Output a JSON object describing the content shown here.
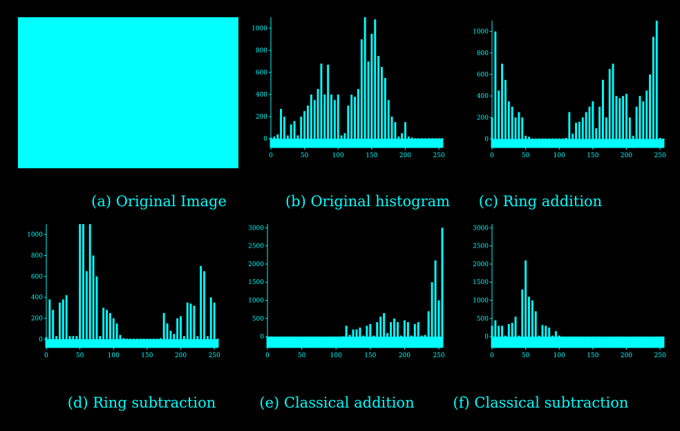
{
  "accent_color": "#00FFFF",
  "background_color": "#000000",
  "original_image": {
    "fill_color": "#00FFFF"
  },
  "captions": {
    "a": "(a) Original Image",
    "b": "(b) Original histogram",
    "c": "(c) Ring addition",
    "d": "(d) Ring subtraction",
    "e": "(e) Classical addition",
    "f": "(f) Classical subtraction"
  },
  "chart_data": [
    {
      "id": "b",
      "type": "bar",
      "title": "",
      "xlabel": "",
      "ylabel": "",
      "grid": false,
      "xlim": [
        0,
        255
      ],
      "ylim": [
        -80,
        1100
      ],
      "x_ticks": [
        0,
        50,
        100,
        150,
        200,
        250
      ],
      "y_ticks": [
        0,
        200,
        400,
        600,
        800,
        1000
      ],
      "y_tick_labels": [
        "0",
        "200",
        "400",
        "600",
        "800",
        "1000"
      ],
      "x": [
        0,
        5,
        10,
        15,
        20,
        25,
        30,
        35,
        40,
        45,
        50,
        55,
        60,
        65,
        70,
        75,
        80,
        85,
        90,
        95,
        100,
        105,
        110,
        115,
        120,
        125,
        130,
        135,
        140,
        145,
        150,
        155,
        160,
        165,
        170,
        175,
        180,
        185,
        190,
        195,
        200,
        205,
        210,
        215,
        220,
        225,
        230,
        235,
        240,
        245,
        250,
        255
      ],
      "values": [
        10,
        20,
        40,
        270,
        200,
        30,
        130,
        160,
        30,
        200,
        250,
        300,
        400,
        350,
        450,
        680,
        400,
        670,
        400,
        350,
        400,
        30,
        50,
        300,
        400,
        380,
        450,
        900,
        1100,
        700,
        950,
        1080,
        750,
        650,
        550,
        350,
        200,
        150,
        20,
        50,
        150,
        20,
        10,
        5,
        5,
        5,
        5,
        5,
        5,
        5,
        5,
        5
      ]
    },
    {
      "id": "c",
      "type": "bar",
      "title": "",
      "xlabel": "",
      "ylabel": "",
      "grid": false,
      "xlim": [
        0,
        255
      ],
      "ylim": [
        -80,
        1100
      ],
      "x_ticks": [
        0,
        50,
        100,
        150,
        200,
        250
      ],
      "y_ticks": [
        0,
        200,
        400,
        600,
        800,
        1000
      ],
      "y_tick_labels": [
        "0",
        "200",
        "400",
        "600",
        "800",
        "1000"
      ],
      "x": [
        0,
        5,
        10,
        15,
        20,
        25,
        30,
        35,
        40,
        45,
        50,
        55,
        60,
        65,
        70,
        75,
        80,
        85,
        90,
        95,
        100,
        105,
        110,
        115,
        120,
        125,
        130,
        135,
        140,
        145,
        150,
        155,
        160,
        165,
        170,
        175,
        180,
        185,
        190,
        195,
        200,
        205,
        210,
        215,
        220,
        225,
        230,
        235,
        240,
        245,
        250,
        255
      ],
      "values": [
        200,
        1000,
        450,
        700,
        550,
        350,
        300,
        200,
        250,
        200,
        30,
        20,
        5,
        5,
        5,
        5,
        5,
        5,
        5,
        5,
        5,
        5,
        10,
        250,
        50,
        150,
        160,
        200,
        250,
        300,
        350,
        100,
        300,
        550,
        200,
        650,
        700,
        400,
        380,
        400,
        420,
        200,
        30,
        300,
        400,
        350,
        450,
        600,
        950,
        1100,
        10,
        5
      ]
    },
    {
      "id": "d",
      "type": "bar",
      "title": "",
      "xlabel": "",
      "ylabel": "",
      "grid": false,
      "xlim": [
        0,
        255
      ],
      "ylim": [
        -80,
        1100
      ],
      "x_ticks": [
        0,
        50,
        100,
        150,
        200,
        250
      ],
      "y_ticks": [
        0,
        200,
        400,
        600,
        800,
        1000
      ],
      "y_tick_labels": [
        "0",
        "200",
        "400",
        "600",
        "800",
        "1000"
      ],
      "x": [
        0,
        5,
        10,
        15,
        20,
        25,
        30,
        35,
        40,
        45,
        50,
        55,
        60,
        65,
        70,
        75,
        80,
        85,
        90,
        95,
        100,
        105,
        110,
        115,
        120,
        125,
        130,
        135,
        140,
        145,
        150,
        155,
        160,
        165,
        170,
        175,
        180,
        185,
        190,
        195,
        200,
        205,
        210,
        215,
        220,
        225,
        230,
        235,
        240,
        245,
        250,
        255
      ],
      "values": [
        20,
        380,
        280,
        30,
        350,
        380,
        420,
        30,
        30,
        30,
        1100,
        1100,
        650,
        1100,
        800,
        600,
        30,
        300,
        280,
        250,
        200,
        150,
        40,
        10,
        5,
        5,
        5,
        5,
        5,
        5,
        5,
        5,
        5,
        5,
        10,
        250,
        150,
        80,
        50,
        200,
        220,
        30,
        350,
        340,
        320,
        30,
        700,
        650,
        30,
        400,
        350,
        5
      ]
    },
    {
      "id": "e",
      "type": "bar",
      "title": "",
      "xlabel": "",
      "ylabel": "",
      "grid": false,
      "xlim": [
        0,
        255
      ],
      "ylim": [
        -300,
        3100
      ],
      "x_ticks": [
        0,
        50,
        100,
        150,
        200,
        250
      ],
      "y_ticks": [
        0,
        500,
        1000,
        1500,
        2000,
        2500,
        3000
      ],
      "y_tick_labels": [
        "0",
        "500",
        "1000",
        "1500",
        "2000",
        "2500",
        "3000"
      ],
      "x": [
        0,
        5,
        10,
        15,
        20,
        25,
        30,
        35,
        40,
        45,
        50,
        55,
        60,
        65,
        70,
        75,
        80,
        85,
        90,
        95,
        100,
        105,
        110,
        115,
        120,
        125,
        130,
        135,
        140,
        145,
        150,
        155,
        160,
        165,
        170,
        175,
        180,
        185,
        190,
        195,
        200,
        205,
        210,
        215,
        220,
        225,
        230,
        235,
        240,
        245,
        250,
        255
      ],
      "values": [
        5,
        5,
        5,
        5,
        5,
        5,
        5,
        5,
        5,
        5,
        5,
        5,
        5,
        5,
        5,
        5,
        5,
        5,
        5,
        5,
        5,
        5,
        10,
        300,
        50,
        200,
        200,
        250,
        30,
        300,
        350,
        30,
        400,
        550,
        650,
        100,
        400,
        500,
        400,
        30,
        450,
        400,
        30,
        350,
        400,
        30,
        50,
        700,
        1500,
        2100,
        1000,
        3000
      ]
    },
    {
      "id": "f",
      "type": "bar",
      "title": "",
      "xlabel": "",
      "ylabel": "",
      "grid": false,
      "xlim": [
        0,
        255
      ],
      "ylim": [
        -300,
        3100
      ],
      "x_ticks": [
        0,
        50,
        100,
        150,
        200,
        250
      ],
      "y_ticks": [
        0,
        500,
        1000,
        1500,
        2000,
        2500,
        3000
      ],
      "y_tick_labels": [
        "0",
        "500",
        "1000",
        "1500",
        "2000",
        "2500",
        "3000"
      ],
      "x": [
        0,
        5,
        10,
        15,
        20,
        25,
        30,
        35,
        40,
        45,
        50,
        55,
        60,
        65,
        70,
        75,
        80,
        85,
        90,
        95,
        100,
        105,
        110,
        115,
        120,
        125,
        130,
        135,
        140,
        145,
        150,
        155,
        160,
        165,
        170,
        175,
        180,
        185,
        190,
        195,
        200,
        205,
        210,
        215,
        220,
        225,
        230,
        235,
        240,
        245,
        250,
        255
      ],
      "values": [
        300,
        450,
        300,
        300,
        30,
        350,
        380,
        550,
        30,
        1300,
        2100,
        1100,
        1000,
        700,
        30,
        320,
        300,
        250,
        30,
        150,
        30,
        5,
        5,
        5,
        5,
        5,
        5,
        5,
        5,
        5,
        5,
        5,
        5,
        5,
        5,
        5,
        5,
        5,
        5,
        5,
        5,
        5,
        5,
        5,
        5,
        5,
        5,
        5,
        5,
        5,
        5,
        5
      ]
    }
  ]
}
